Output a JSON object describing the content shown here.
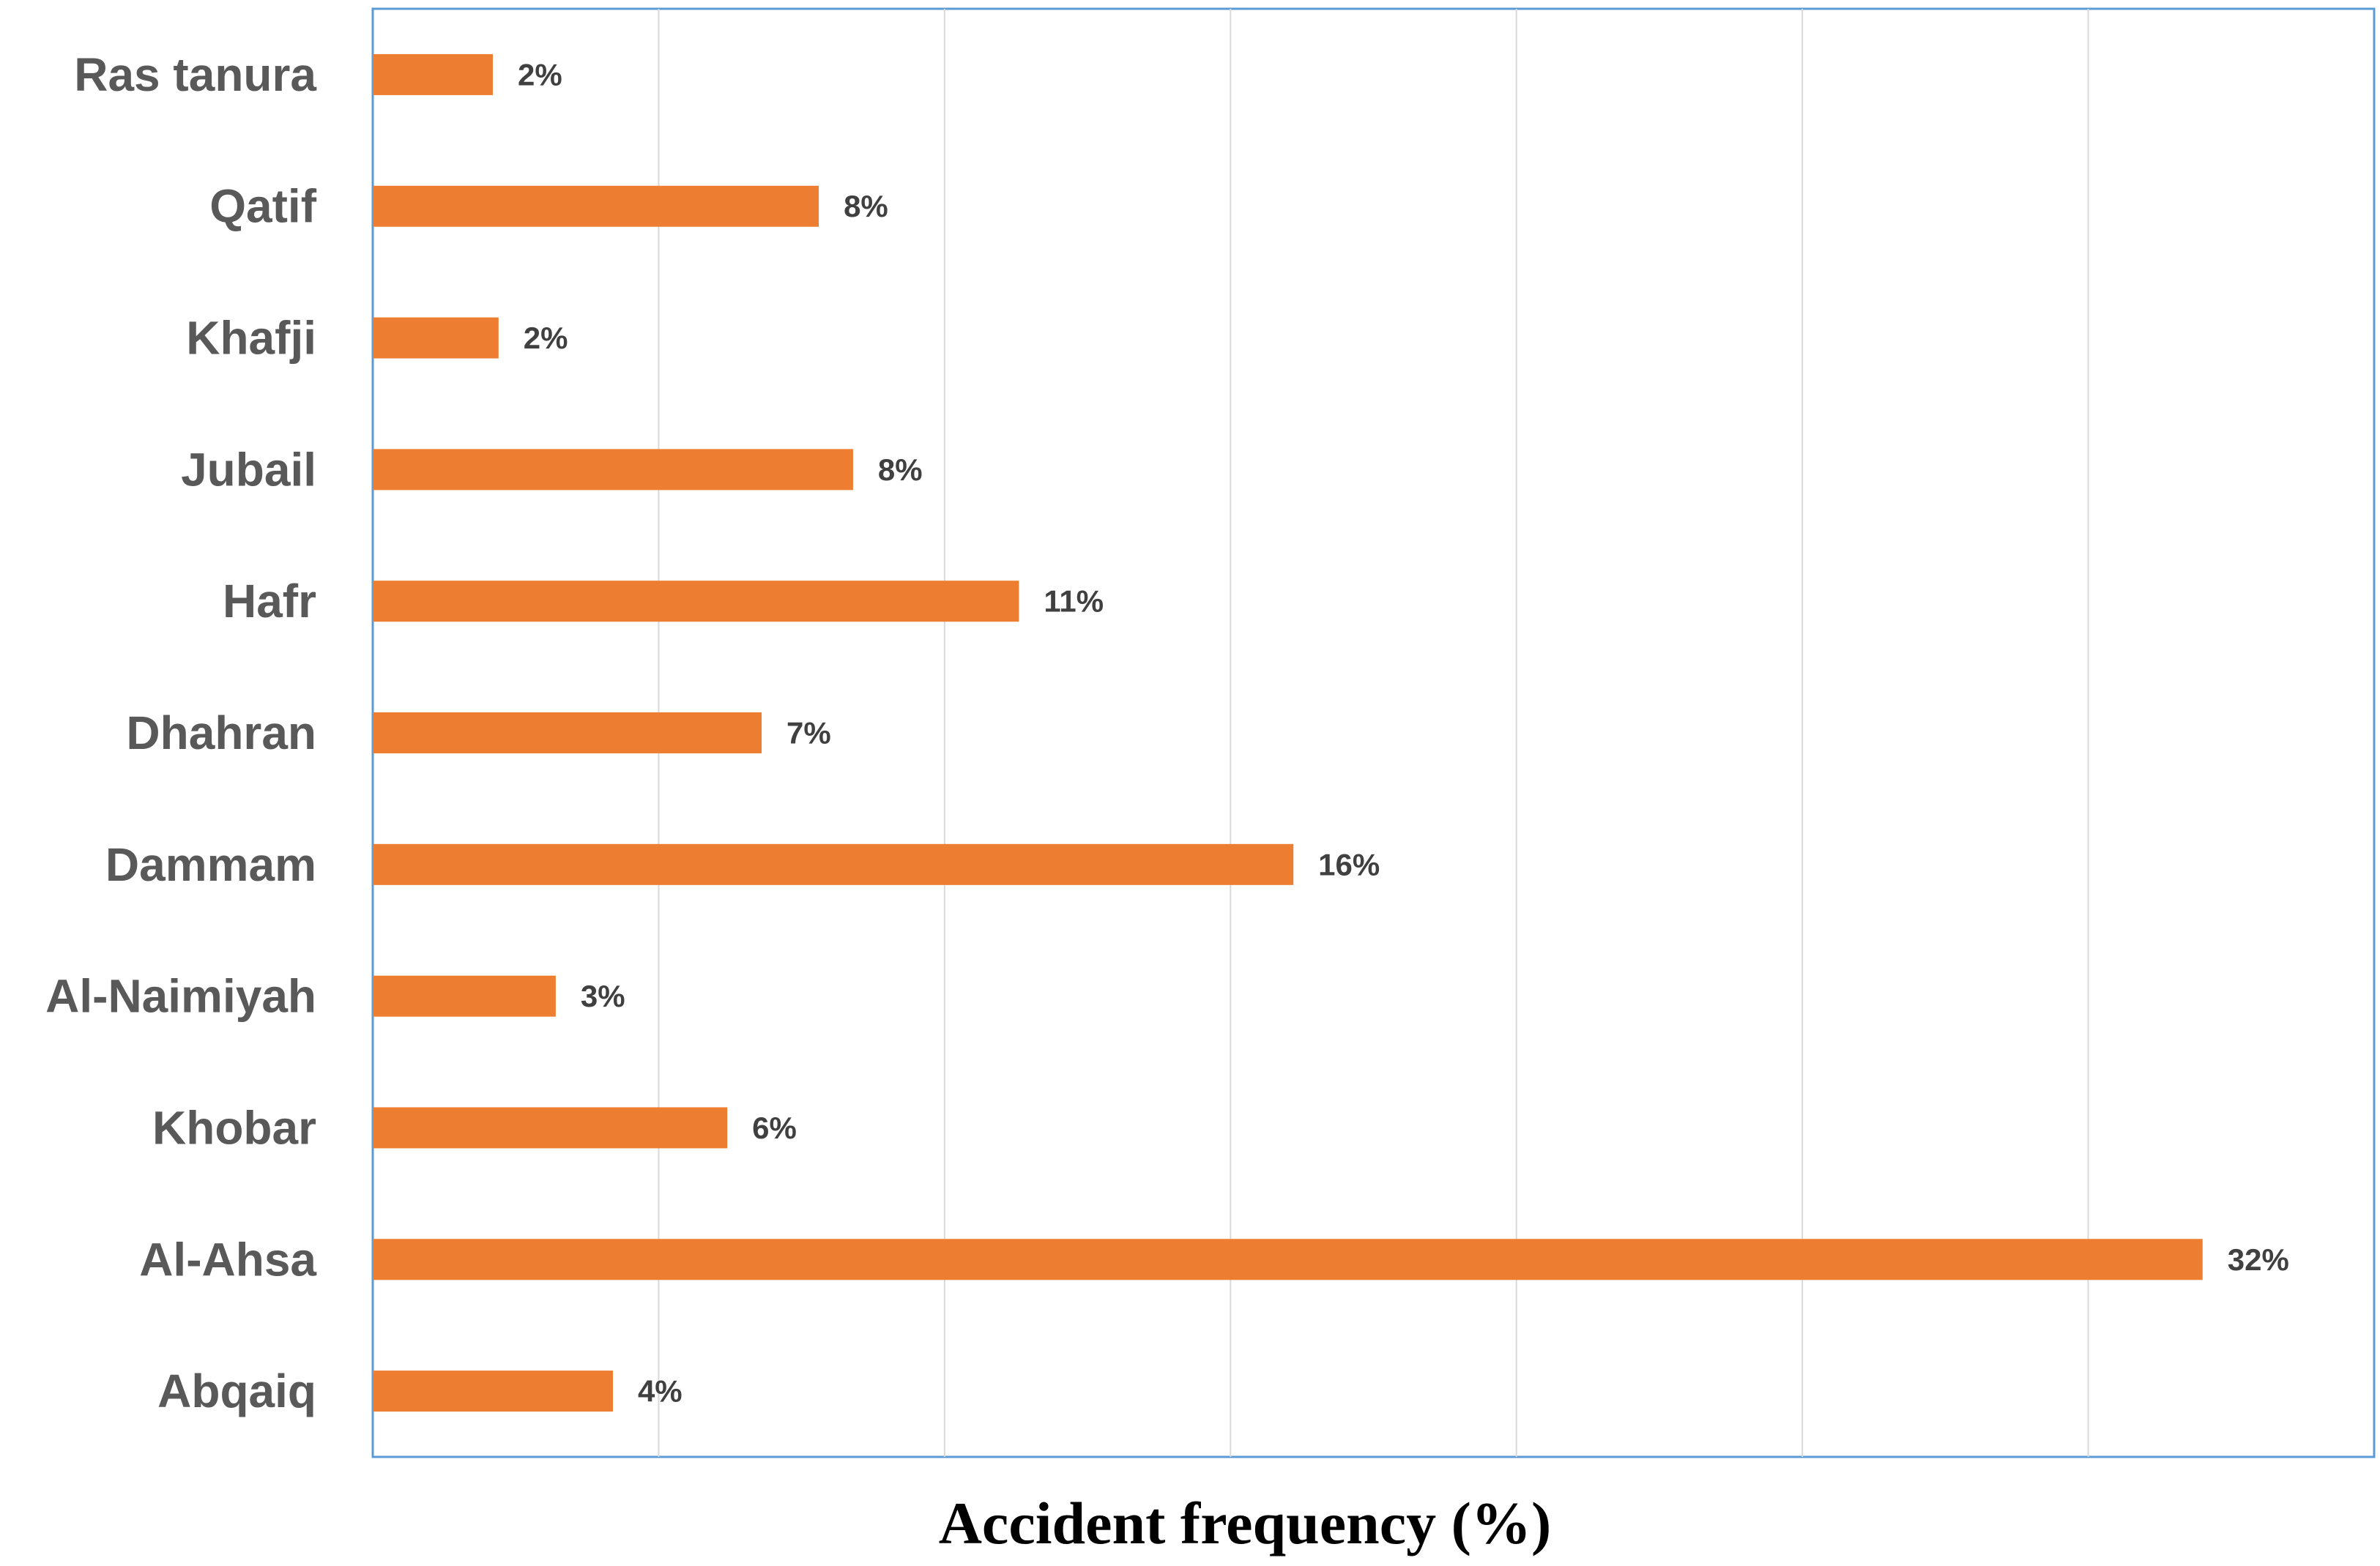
{
  "chart_data": {
    "type": "bar",
    "orientation": "horizontal",
    "categories": [
      "Ras tanura",
      "Qatif",
      "Khafji",
      "Jubail",
      "Hafr",
      "Dhahran",
      "Dammam",
      "Al-Naimiyah",
      "Khobar",
      "Al-Ahsa",
      "Abqaiq"
    ],
    "values": [
      2.1,
      7.8,
      2.2,
      8.4,
      11.3,
      6.8,
      16.1,
      3.2,
      6.2,
      32.0,
      4.2
    ],
    "data_labels": [
      "2%",
      "8%",
      "2%",
      "8%",
      "11%",
      "7%",
      "16%",
      "3%",
      "6%",
      "32%",
      "4%"
    ],
    "title": "",
    "xlabel": "Accident frequency (%)",
    "ylabel": "",
    "xlim": [
      0,
      35
    ],
    "grid": "vertical",
    "legend": "none",
    "colors": {
      "bar": "#ED7D31",
      "gridline": "#D9D9D9",
      "plot_border": "#5B9BD5",
      "category_text": "#595959",
      "data_label_text": "#404040"
    }
  }
}
